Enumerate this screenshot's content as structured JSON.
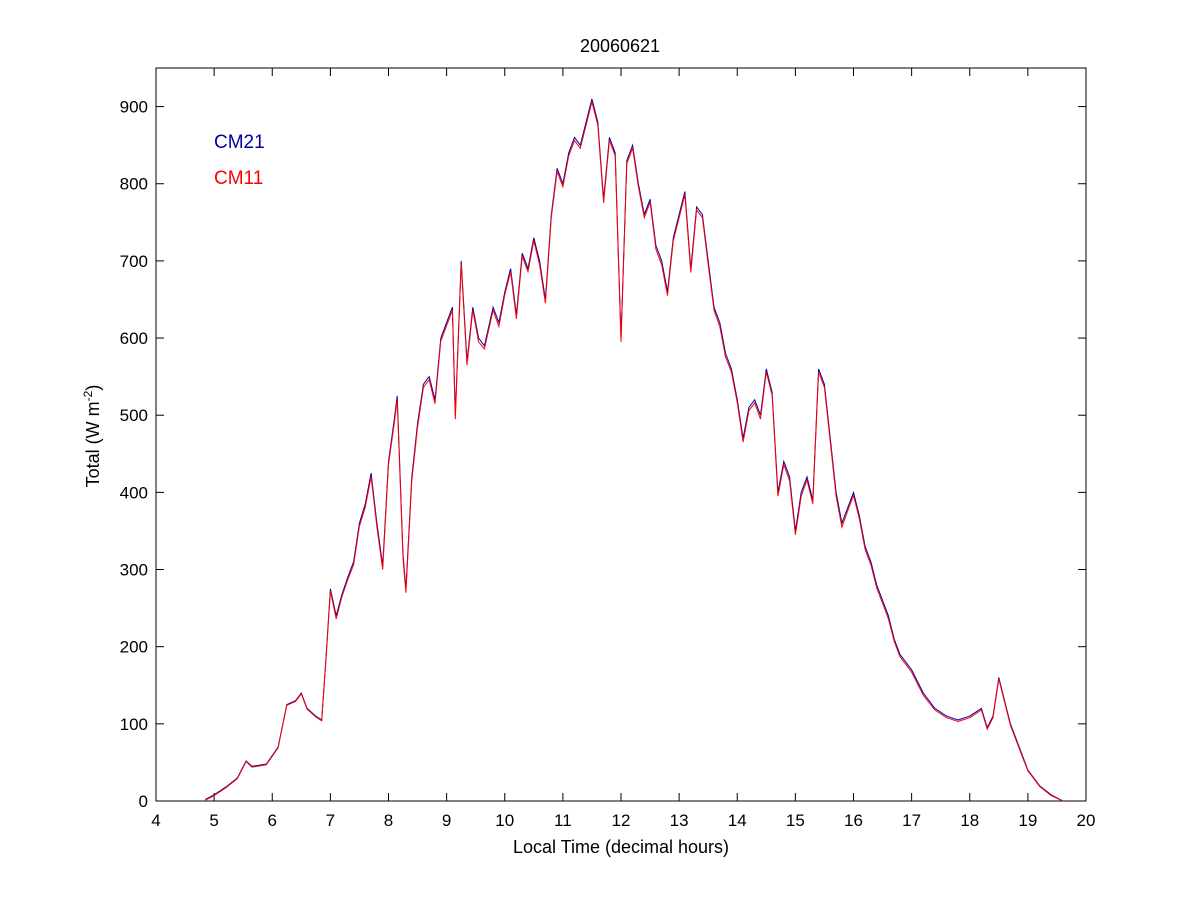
{
  "chart_data": {
    "type": "line",
    "title": "20060621",
    "xlabel": "Local Time (decimal hours)",
    "ylabel_main": "Total (W m",
    "ylabel_sup": "-2",
    "ylabel_close": ")",
    "xlim": [
      4,
      20
    ],
    "ylim": [
      0,
      950
    ],
    "xticks": [
      4,
      5,
      6,
      7,
      8,
      9,
      10,
      11,
      12,
      13,
      14,
      15,
      16,
      17,
      18,
      19,
      20
    ],
    "yticks": [
      0,
      100,
      200,
      300,
      400,
      500,
      600,
      700,
      800,
      900
    ],
    "grid": false,
    "legend_position": "top-left",
    "series": [
      {
        "name": "CM21",
        "color": "#0000aa",
        "points": [
          [
            4.85,
            2
          ],
          [
            5.0,
            8
          ],
          [
            5.2,
            18
          ],
          [
            5.4,
            30
          ],
          [
            5.55,
            52
          ],
          [
            5.65,
            45
          ],
          [
            5.75,
            46
          ],
          [
            5.9,
            48
          ],
          [
            6.1,
            70
          ],
          [
            6.25,
            125
          ],
          [
            6.4,
            130
          ],
          [
            6.5,
            140
          ],
          [
            6.6,
            120
          ],
          [
            6.75,
            110
          ],
          [
            6.85,
            105
          ],
          [
            6.92,
            180
          ],
          [
            7.0,
            275
          ],
          [
            7.1,
            240
          ],
          [
            7.2,
            268
          ],
          [
            7.3,
            290
          ],
          [
            7.4,
            310
          ],
          [
            7.5,
            360
          ],
          [
            7.6,
            385
          ],
          [
            7.7,
            425
          ],
          [
            7.8,
            360
          ],
          [
            7.9,
            305
          ],
          [
            8.0,
            440
          ],
          [
            8.1,
            495
          ],
          [
            8.15,
            525
          ],
          [
            8.25,
            320
          ],
          [
            8.3,
            275
          ],
          [
            8.4,
            420
          ],
          [
            8.5,
            490
          ],
          [
            8.6,
            540
          ],
          [
            8.7,
            550
          ],
          [
            8.8,
            520
          ],
          [
            8.9,
            600
          ],
          [
            9.0,
            620
          ],
          [
            9.1,
            640
          ],
          [
            9.15,
            500
          ],
          [
            9.25,
            700
          ],
          [
            9.35,
            570
          ],
          [
            9.45,
            640
          ],
          [
            9.55,
            600
          ],
          [
            9.65,
            590
          ],
          [
            9.8,
            640
          ],
          [
            9.9,
            620
          ],
          [
            10.0,
            660
          ],
          [
            10.1,
            690
          ],
          [
            10.2,
            630
          ],
          [
            10.3,
            710
          ],
          [
            10.4,
            690
          ],
          [
            10.5,
            730
          ],
          [
            10.6,
            700
          ],
          [
            10.7,
            650
          ],
          [
            10.8,
            760
          ],
          [
            10.9,
            820
          ],
          [
            11.0,
            800
          ],
          [
            11.1,
            840
          ],
          [
            11.2,
            860
          ],
          [
            11.3,
            850
          ],
          [
            11.4,
            880
          ],
          [
            11.5,
            910
          ],
          [
            11.6,
            880
          ],
          [
            11.7,
            780
          ],
          [
            11.8,
            860
          ],
          [
            11.9,
            840
          ],
          [
            11.95,
            720
          ],
          [
            12.0,
            600
          ],
          [
            12.1,
            830
          ],
          [
            12.2,
            850
          ],
          [
            12.3,
            800
          ],
          [
            12.4,
            760
          ],
          [
            12.5,
            780
          ],
          [
            12.6,
            720
          ],
          [
            12.7,
            700
          ],
          [
            12.8,
            660
          ],
          [
            12.9,
            730
          ],
          [
            13.0,
            760
          ],
          [
            13.1,
            790
          ],
          [
            13.2,
            690
          ],
          [
            13.3,
            770
          ],
          [
            13.4,
            760
          ],
          [
            13.5,
            700
          ],
          [
            13.6,
            640
          ],
          [
            13.7,
            620
          ],
          [
            13.8,
            580
          ],
          [
            13.9,
            560
          ],
          [
            14.0,
            520
          ],
          [
            14.1,
            470
          ],
          [
            14.2,
            510
          ],
          [
            14.3,
            520
          ],
          [
            14.4,
            500
          ],
          [
            14.5,
            560
          ],
          [
            14.6,
            530
          ],
          [
            14.7,
            400
          ],
          [
            14.8,
            440
          ],
          [
            14.9,
            420
          ],
          [
            15.0,
            350
          ],
          [
            15.1,
            400
          ],
          [
            15.2,
            420
          ],
          [
            15.3,
            390
          ],
          [
            15.4,
            560
          ],
          [
            15.5,
            540
          ],
          [
            15.6,
            470
          ],
          [
            15.7,
            400
          ],
          [
            15.8,
            360
          ],
          [
            15.9,
            380
          ],
          [
            16.0,
            400
          ],
          [
            16.1,
            370
          ],
          [
            16.2,
            330
          ],
          [
            16.3,
            310
          ],
          [
            16.4,
            280
          ],
          [
            16.5,
            260
          ],
          [
            16.6,
            240
          ],
          [
            16.7,
            210
          ],
          [
            16.8,
            190
          ],
          [
            16.9,
            180
          ],
          [
            17.0,
            170
          ],
          [
            17.2,
            140
          ],
          [
            17.4,
            120
          ],
          [
            17.6,
            110
          ],
          [
            17.8,
            105
          ],
          [
            18.0,
            110
          ],
          [
            18.2,
            120
          ],
          [
            18.3,
            95
          ],
          [
            18.4,
            110
          ],
          [
            18.5,
            160
          ],
          [
            18.6,
            130
          ],
          [
            18.7,
            100
          ],
          [
            18.8,
            80
          ],
          [
            18.9,
            60
          ],
          [
            19.0,
            40
          ],
          [
            19.2,
            20
          ],
          [
            19.4,
            8
          ],
          [
            19.6,
            0
          ]
        ]
      },
      {
        "name": "CM11",
        "color": "#ff0000",
        "points": [
          [
            4.85,
            1
          ],
          [
            5.0,
            7
          ],
          [
            5.2,
            17
          ],
          [
            5.4,
            29
          ],
          [
            5.55,
            51
          ],
          [
            5.65,
            44
          ],
          [
            5.75,
            45
          ],
          [
            5.9,
            47
          ],
          [
            6.1,
            69
          ],
          [
            6.25,
            124
          ],
          [
            6.4,
            129
          ],
          [
            6.5,
            139
          ],
          [
            6.6,
            119
          ],
          [
            6.75,
            109
          ],
          [
            6.85,
            104
          ],
          [
            6.92,
            178
          ],
          [
            7.0,
            272
          ],
          [
            7.1,
            236
          ],
          [
            7.2,
            265
          ],
          [
            7.3,
            287
          ],
          [
            7.4,
            306
          ],
          [
            7.5,
            356
          ],
          [
            7.6,
            381
          ],
          [
            7.7,
            420
          ],
          [
            7.8,
            355
          ],
          [
            7.9,
            300
          ],
          [
            8.0,
            436
          ],
          [
            8.1,
            490
          ],
          [
            8.15,
            520
          ],
          [
            8.25,
            315
          ],
          [
            8.3,
            270
          ],
          [
            8.4,
            415
          ],
          [
            8.5,
            485
          ],
          [
            8.6,
            536
          ],
          [
            8.7,
            546
          ],
          [
            8.8,
            515
          ],
          [
            8.9,
            596
          ],
          [
            9.0,
            616
          ],
          [
            9.1,
            636
          ],
          [
            9.15,
            495
          ],
          [
            9.25,
            696
          ],
          [
            9.35,
            565
          ],
          [
            9.45,
            636
          ],
          [
            9.55,
            595
          ],
          [
            9.65,
            586
          ],
          [
            9.8,
            636
          ],
          [
            9.9,
            615
          ],
          [
            10.0,
            656
          ],
          [
            10.1,
            686
          ],
          [
            10.2,
            625
          ],
          [
            10.3,
            706
          ],
          [
            10.4,
            686
          ],
          [
            10.5,
            726
          ],
          [
            10.6,
            695
          ],
          [
            10.7,
            645
          ],
          [
            10.8,
            756
          ],
          [
            10.9,
            816
          ],
          [
            11.0,
            796
          ],
          [
            11.1,
            836
          ],
          [
            11.2,
            856
          ],
          [
            11.3,
            846
          ],
          [
            11.4,
            876
          ],
          [
            11.5,
            906
          ],
          [
            11.6,
            876
          ],
          [
            11.7,
            775
          ],
          [
            11.8,
            856
          ],
          [
            11.9,
            836
          ],
          [
            11.95,
            715
          ],
          [
            12.0,
            595
          ],
          [
            12.1,
            826
          ],
          [
            12.2,
            846
          ],
          [
            12.3,
            796
          ],
          [
            12.4,
            756
          ],
          [
            12.5,
            776
          ],
          [
            12.6,
            715
          ],
          [
            12.7,
            695
          ],
          [
            12.8,
            655
          ],
          [
            12.9,
            726
          ],
          [
            13.0,
            756
          ],
          [
            13.1,
            786
          ],
          [
            13.2,
            685
          ],
          [
            13.3,
            766
          ],
          [
            13.4,
            756
          ],
          [
            13.5,
            695
          ],
          [
            13.6,
            636
          ],
          [
            13.7,
            615
          ],
          [
            13.8,
            575
          ],
          [
            13.9,
            556
          ],
          [
            14.0,
            516
          ],
          [
            14.1,
            465
          ],
          [
            14.2,
            506
          ],
          [
            14.3,
            516
          ],
          [
            14.4,
            495
          ],
          [
            14.5,
            556
          ],
          [
            14.6,
            526
          ],
          [
            14.7,
            395
          ],
          [
            14.8,
            436
          ],
          [
            14.9,
            415
          ],
          [
            15.0,
            345
          ],
          [
            15.1,
            395
          ],
          [
            15.2,
            416
          ],
          [
            15.3,
            385
          ],
          [
            15.4,
            556
          ],
          [
            15.5,
            536
          ],
          [
            15.6,
            465
          ],
          [
            15.7,
            395
          ],
          [
            15.8,
            355
          ],
          [
            15.9,
            376
          ],
          [
            16.0,
            396
          ],
          [
            16.1,
            366
          ],
          [
            16.2,
            326
          ],
          [
            16.3,
            306
          ],
          [
            16.4,
            276
          ],
          [
            16.5,
            256
          ],
          [
            16.6,
            236
          ],
          [
            16.7,
            207
          ],
          [
            16.8,
            187
          ],
          [
            16.9,
            177
          ],
          [
            17.0,
            167
          ],
          [
            17.2,
            137
          ],
          [
            17.4,
            118
          ],
          [
            17.6,
            108
          ],
          [
            17.8,
            103
          ],
          [
            18.0,
            108
          ],
          [
            18.2,
            118
          ],
          [
            18.3,
            93
          ],
          [
            18.4,
            108
          ],
          [
            18.5,
            158
          ],
          [
            18.6,
            128
          ],
          [
            18.7,
            98
          ],
          [
            18.8,
            78
          ],
          [
            18.9,
            58
          ],
          [
            19.0,
            39
          ],
          [
            19.2,
            19
          ],
          [
            19.4,
            7
          ],
          [
            19.6,
            0
          ]
        ]
      }
    ]
  }
}
